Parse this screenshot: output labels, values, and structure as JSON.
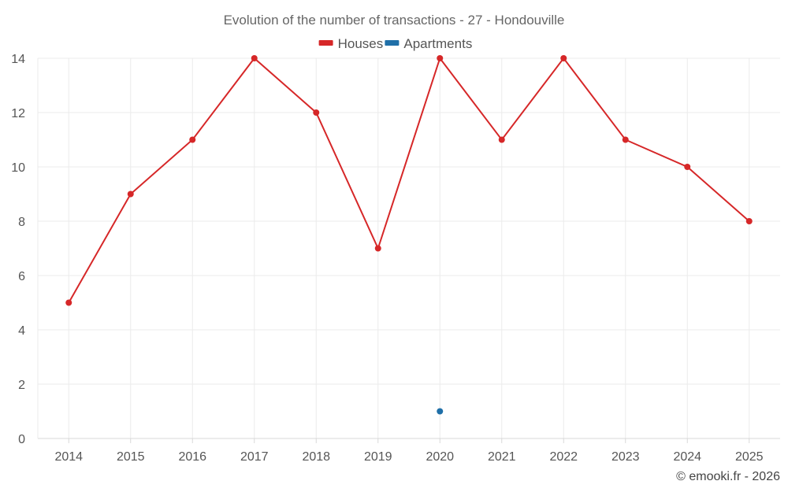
{
  "chart_data": {
    "type": "line",
    "title": "Evolution of the number of transactions - 27 - Hondouville",
    "xlabel": "",
    "ylabel": "",
    "x": [
      "2014",
      "2015",
      "2016",
      "2017",
      "2018",
      "2019",
      "2020",
      "2021",
      "2022",
      "2023",
      "2024",
      "2025"
    ],
    "ylim": [
      0,
      14
    ],
    "yticks": [
      "0",
      "2",
      "4",
      "6",
      "8",
      "10",
      "12",
      "14"
    ],
    "grid": true,
    "legend_position": "top",
    "series": [
      {
        "name": "Houses",
        "color": "#d62728",
        "values": [
          5,
          9,
          11,
          14,
          12,
          7,
          14,
          11,
          14,
          11,
          10,
          8
        ]
      },
      {
        "name": "Apartments",
        "color": "#1f6fa8",
        "values": [
          null,
          null,
          null,
          null,
          null,
          null,
          1,
          null,
          null,
          null,
          null,
          null
        ]
      }
    ]
  },
  "credit": "© emooki.fr - 2026"
}
